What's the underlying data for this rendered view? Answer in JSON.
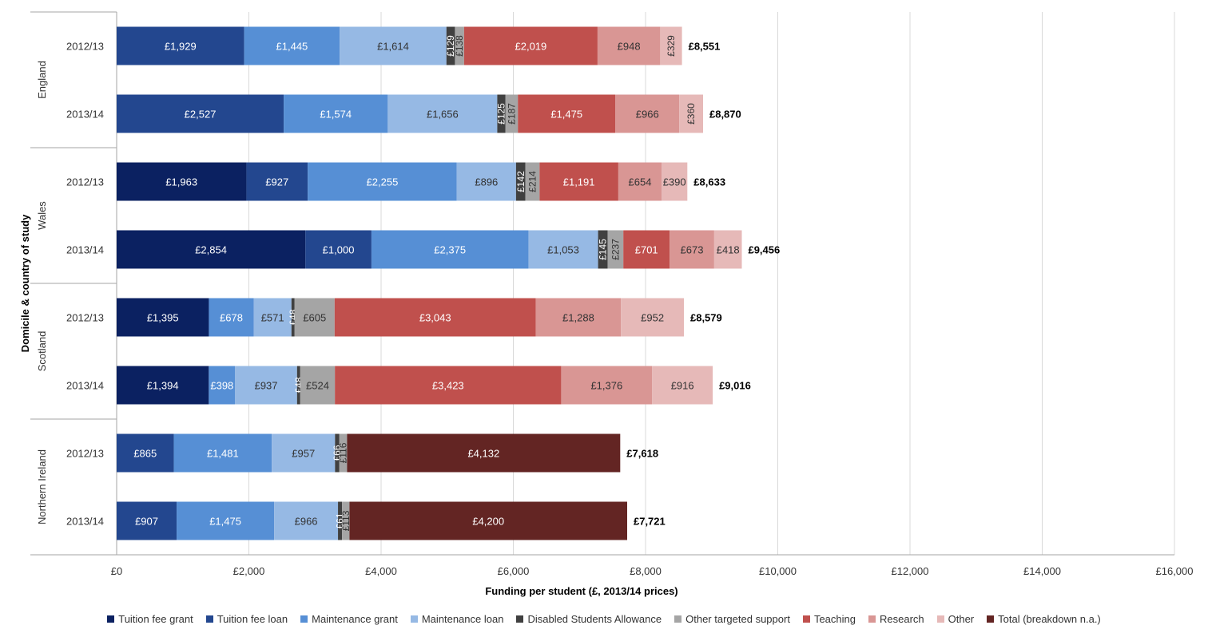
{
  "chart_data": {
    "type": "bar",
    "orientation": "horizontal",
    "stacked": true,
    "xlabel": "Funding per student (£, 2013/14 prices)",
    "ylabel": "Domicile & country of study",
    "xlim": [
      0,
      16000
    ],
    "xticks": [
      "£0",
      "£2,000",
      "£4,000",
      "£6,000",
      "£8,000",
      "£10,000",
      "£12,000",
      "£14,000",
      "£16,000"
    ],
    "grid": true,
    "legend_position": "bottom",
    "series": [
      {
        "name": "Tuition fee grant",
        "color": "#0b2161"
      },
      {
        "name": "Tuition fee loan",
        "color": "#23478f"
      },
      {
        "name": "Maintenance grant",
        "color": "#568fd5"
      },
      {
        "name": "Maintenance loan",
        "color": "#96b9e4"
      },
      {
        "name": "Disabled Students Allowance",
        "color": "#404040"
      },
      {
        "name": "Other targeted support",
        "color": "#a5a5a5"
      },
      {
        "name": "Teaching",
        "color": "#c0504d"
      },
      {
        "name": "Research",
        "color": "#d99694"
      },
      {
        "name": "Other",
        "color": "#e6b9b8"
      },
      {
        "name": "Total (breakdown n.a.)",
        "color": "#632523"
      }
    ],
    "groups": [
      {
        "name": "England",
        "rows": [
          {
            "label": "2012/13",
            "total": "£8,551",
            "segments": [
              {
                "series": 1,
                "value": 1929,
                "label": "£1,929"
              },
              {
                "series": 2,
                "value": 1445,
                "label": "£1,445"
              },
              {
                "series": 3,
                "value": 1614,
                "label": "£1,614"
              },
              {
                "series": 4,
                "value": 129,
                "label": "£129"
              },
              {
                "series": 5,
                "value": 138,
                "label": "£138"
              },
              {
                "series": 6,
                "value": 2019,
                "label": "£2,019"
              },
              {
                "series": 7,
                "value": 948,
                "label": "£948"
              },
              {
                "series": 8,
                "value": 329,
                "label": "£329"
              }
            ]
          },
          {
            "label": "2013/14",
            "total": "£8,870",
            "segments": [
              {
                "series": 1,
                "value": 2527,
                "label": "£2,527"
              },
              {
                "series": 2,
                "value": 1574,
                "label": "£1,574"
              },
              {
                "series": 3,
                "value": 1656,
                "label": "£1,656"
              },
              {
                "series": 4,
                "value": 125,
                "label": "£125"
              },
              {
                "series": 5,
                "value": 187,
                "label": "£187"
              },
              {
                "series": 6,
                "value": 1475,
                "label": "£1,475"
              },
              {
                "series": 7,
                "value": 966,
                "label": "£966"
              },
              {
                "series": 8,
                "value": 360,
                "label": "£360"
              }
            ]
          }
        ]
      },
      {
        "name": "Wales",
        "rows": [
          {
            "label": "2012/13",
            "total": "£8,633",
            "segments": [
              {
                "series": 0,
                "value": 1963,
                "label": "£1,963"
              },
              {
                "series": 1,
                "value": 927,
                "label": "£927"
              },
              {
                "series": 2,
                "value": 2255,
                "label": "£2,255"
              },
              {
                "series": 3,
                "value": 896,
                "label": "£896"
              },
              {
                "series": 4,
                "value": 142,
                "label": "£142"
              },
              {
                "series": 5,
                "value": 214,
                "label": "£214"
              },
              {
                "series": 6,
                "value": 1191,
                "label": "£1,191"
              },
              {
                "series": 7,
                "value": 654,
                "label": "£654"
              },
              {
                "series": 8,
                "value": 390,
                "label": "£390"
              }
            ]
          },
          {
            "label": "2013/14",
            "total": "£9,456",
            "segments": [
              {
                "series": 0,
                "value": 2854,
                "label": "£2,854"
              },
              {
                "series": 1,
                "value": 1000,
                "label": "£1,000"
              },
              {
                "series": 2,
                "value": 2375,
                "label": "£2,375"
              },
              {
                "series": 3,
                "value": 1053,
                "label": "£1,053"
              },
              {
                "series": 4,
                "value": 145,
                "label": "£145"
              },
              {
                "series": 5,
                "value": 237,
                "label": "£237"
              },
              {
                "series": 6,
                "value": 701,
                "label": "£701"
              },
              {
                "series": 7,
                "value": 673,
                "label": "£673"
              },
              {
                "series": 8,
                "value": 418,
                "label": "£418"
              }
            ]
          }
        ]
      },
      {
        "name": "Scotland",
        "rows": [
          {
            "label": "2012/13",
            "total": "£8,579",
            "segments": [
              {
                "series": 0,
                "value": 1395,
                "label": "£1,395"
              },
              {
                "series": 2,
                "value": 678,
                "label": "£678"
              },
              {
                "series": 3,
                "value": 571,
                "label": "£571"
              },
              {
                "series": 4,
                "value": 48,
                "label": "£48"
              },
              {
                "series": 5,
                "value": 605,
                "label": "£605"
              },
              {
                "series": 6,
                "value": 3043,
                "label": "£3,043"
              },
              {
                "series": 7,
                "value": 1288,
                "label": "£1,288"
              },
              {
                "series": 8,
                "value": 952,
                "label": "£952"
              }
            ]
          },
          {
            "label": "2013/14",
            "total": "£9,016",
            "segments": [
              {
                "series": 0,
                "value": 1394,
                "label": "£1,394"
              },
              {
                "series": 2,
                "value": 398,
                "label": "£398"
              },
              {
                "series": 3,
                "value": 937,
                "label": "£937"
              },
              {
                "series": 4,
                "value": 48,
                "label": "£48"
              },
              {
                "series": 5,
                "value": 524,
                "label": "£524"
              },
              {
                "series": 6,
                "value": 3423,
                "label": "£3,423"
              },
              {
                "series": 7,
                "value": 1376,
                "label": "£1,376"
              },
              {
                "series": 8,
                "value": 916,
                "label": "£916"
              }
            ]
          }
        ]
      },
      {
        "name": "Northern Ireland",
        "rows": [
          {
            "label": "2012/13",
            "total": "£7,618",
            "segments": [
              {
                "series": 1,
                "value": 865,
                "label": "£865"
              },
              {
                "series": 2,
                "value": 1481,
                "label": "£1,481"
              },
              {
                "series": 3,
                "value": 957,
                "label": "£957"
              },
              {
                "series": 4,
                "value": 66,
                "label": "£66"
              },
              {
                "series": 5,
                "value": 116,
                "label": "£116"
              },
              {
                "series": 9,
                "value": 4132,
                "label": "£4,132"
              }
            ]
          },
          {
            "label": "2013/14",
            "total": "£7,721",
            "segments": [
              {
                "series": 1,
                "value": 907,
                "label": "£907"
              },
              {
                "series": 2,
                "value": 1475,
                "label": "£1,475"
              },
              {
                "series": 3,
                "value": 966,
                "label": "£966"
              },
              {
                "series": 4,
                "value": 61,
                "label": "£61"
              },
              {
                "series": 5,
                "value": 113,
                "label": "£113"
              },
              {
                "series": 9,
                "value": 4200,
                "label": "£4,200"
              }
            ]
          }
        ]
      }
    ]
  }
}
